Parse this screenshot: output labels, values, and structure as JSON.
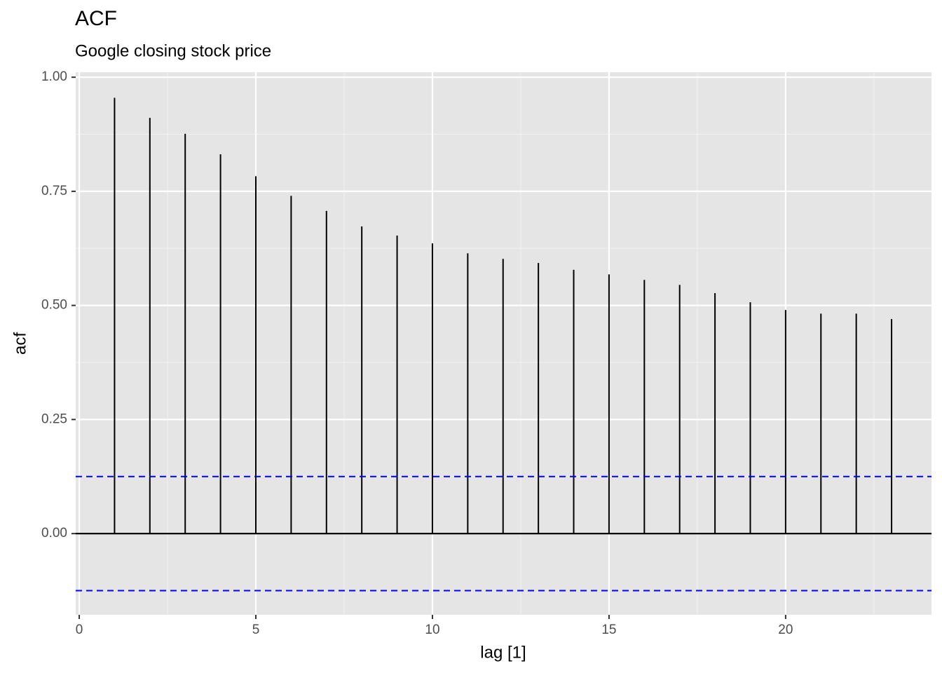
{
  "chart_data": {
    "type": "acf",
    "title": "ACF",
    "subtitle": "Google closing stock price",
    "x_label": "lag [1]",
    "y_label": "acf",
    "x": [
      1,
      2,
      3,
      4,
      5,
      6,
      7,
      8,
      9,
      10,
      11,
      12,
      13,
      14,
      15,
      16,
      17,
      18,
      19,
      20,
      21,
      22,
      23
    ],
    "values": [
      0.955,
      0.911,
      0.876,
      0.831,
      0.783,
      0.74,
      0.707,
      0.673,
      0.653,
      0.636,
      0.614,
      0.602,
      0.593,
      0.578,
      0.568,
      0.556,
      0.545,
      0.527,
      0.507,
      0.49,
      0.482,
      0.482,
      0.47
    ],
    "color": "#000000",
    "ci": [
      -0.125,
      0.125
    ],
    "ci_color": "#0000ff",
    "xlim": [
      -0.1,
      24.13
    ],
    "ylim": [
      -0.178,
      1.011
    ],
    "xticks": [
      0,
      5,
      10,
      15,
      20
    ],
    "yticks": [
      {
        "value": 0,
        "label": "0.00"
      },
      {
        "value": 0.25,
        "label": "0.25"
      },
      {
        "value": 0.5,
        "label": "0.50"
      },
      {
        "value": 0.75,
        "label": "0.75"
      },
      {
        "value": 1,
        "label": "1.00"
      }
    ],
    "grid": true
  }
}
